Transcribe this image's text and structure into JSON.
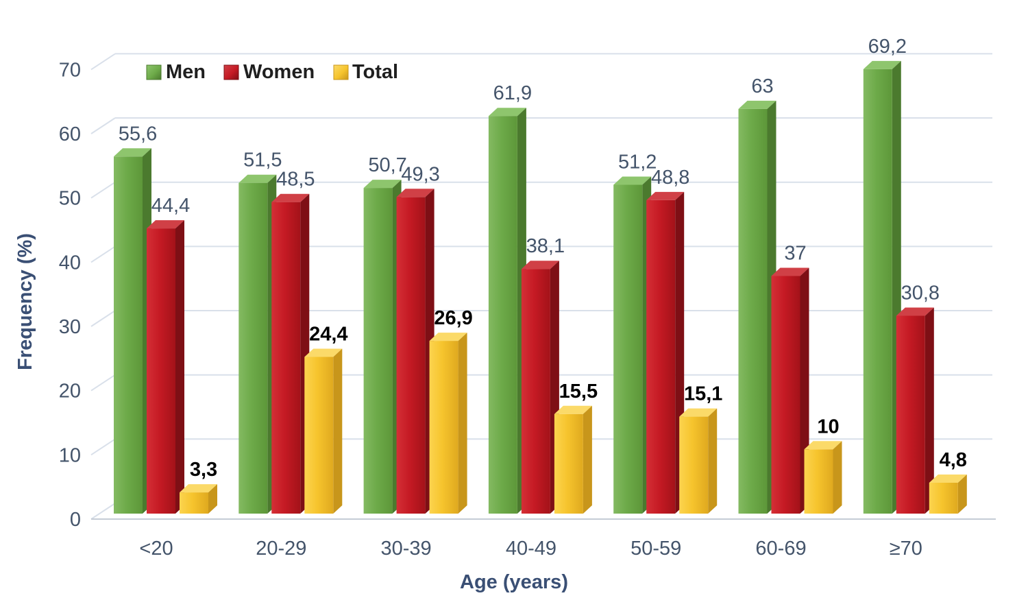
{
  "chart_data": {
    "type": "bar",
    "title": "",
    "xlabel": "Age (years)",
    "ylabel": "Frequency (%)",
    "categories": [
      "<20",
      "20-29",
      "30-39",
      "40-49",
      "50-59",
      "60-69",
      "≥70"
    ],
    "ylim": [
      0,
      70
    ],
    "yticks": [
      0,
      10,
      20,
      30,
      40,
      50,
      60,
      70
    ],
    "ytick_labels": [
      "0",
      "10",
      "20",
      "30",
      "40",
      "50",
      "60",
      "70"
    ],
    "grid": true,
    "legend_position": "top",
    "style": "3d-grouped-bars",
    "series": [
      {
        "name": "Men",
        "values": [
          55.6,
          51.5,
          50.7,
          61.9,
          51.2,
          63,
          69.2
        ],
        "labels": [
          "55,6",
          "51,5",
          "50,7",
          "61,9",
          "51,2",
          "63",
          "69,2"
        ],
        "colors": {
          "front_light": "#84ba62",
          "front": "#6daa49",
          "front_dark": "#5d9739",
          "top": "#8ec56d",
          "side": "#4b7a2e"
        },
        "label_color": "#44546a",
        "label_weight": "normal"
      },
      {
        "name": "Women",
        "values": [
          44.4,
          48.5,
          49.3,
          38.1,
          48.8,
          37,
          30.8
        ],
        "labels": [
          "44,4",
          "48,5",
          "49,3",
          "38,1",
          "48,8",
          "37",
          "30,8"
        ],
        "colors": {
          "front_light": "#d42f36",
          "front": "#c51a24",
          "front_dark": "#a31219",
          "top": "#d04046",
          "side": "#7e0f15"
        },
        "label_color": "#44546a",
        "label_weight": "normal"
      },
      {
        "name": "Total",
        "values": [
          3.3,
          24.4,
          26.9,
          15.5,
          15.1,
          10,
          4.8
        ],
        "labels": [
          "3,3",
          "24,4",
          "26,9",
          "15,5",
          "15,1",
          "10",
          "4,8"
        ],
        "colors": {
          "front_light": "#fcd44f",
          "front": "#f6c42d",
          "front_dark": "#dfa91f",
          "top": "#fbda69",
          "side": "#c8961b"
        },
        "label_color": "#000000",
        "label_weight": "bold"
      }
    ]
  },
  "colors": {
    "background": "#ffffff",
    "gridline": "#d9e0ea",
    "baseline": "#c5ccd6",
    "tick_text": "#44546a",
    "category_text": "#44546a",
    "axis_title": "#3a4f74",
    "legend_text": "#1f1f1f"
  }
}
